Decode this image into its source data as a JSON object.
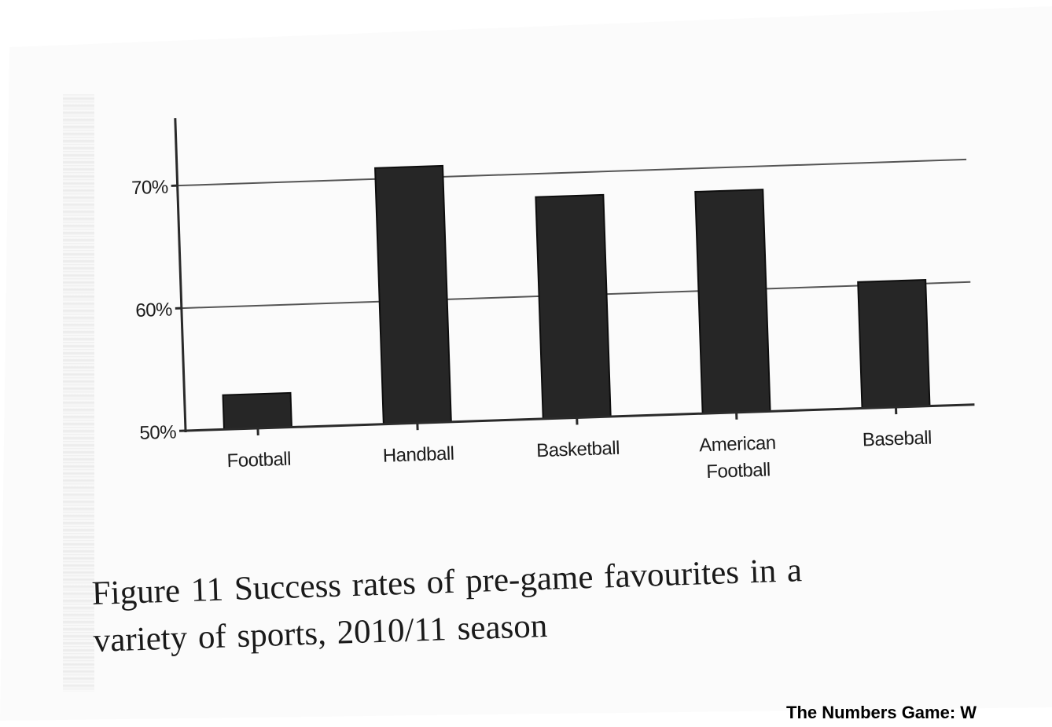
{
  "chart_data": {
    "type": "bar",
    "categories": [
      [
        "Football"
      ],
      [
        "Handball"
      ],
      [
        "Basketball"
      ],
      [
        "American",
        "Football"
      ],
      [
        "Baseball"
      ]
    ],
    "values": [
      52.8,
      70.9,
      68.1,
      68.1,
      60.3
    ],
    "ylim": [
      50,
      75
    ],
    "yticks": [
      50,
      60,
      70
    ],
    "ytick_labels": [
      "50%",
      "60%",
      "70%"
    ],
    "grid": true,
    "bar_color": "#262626"
  },
  "caption": {
    "line1": "Figure 11 Success rates of pre-game favourites in a",
    "line2": "variety of sports, 2010/11 season"
  },
  "source": "The Numbers Game: W"
}
